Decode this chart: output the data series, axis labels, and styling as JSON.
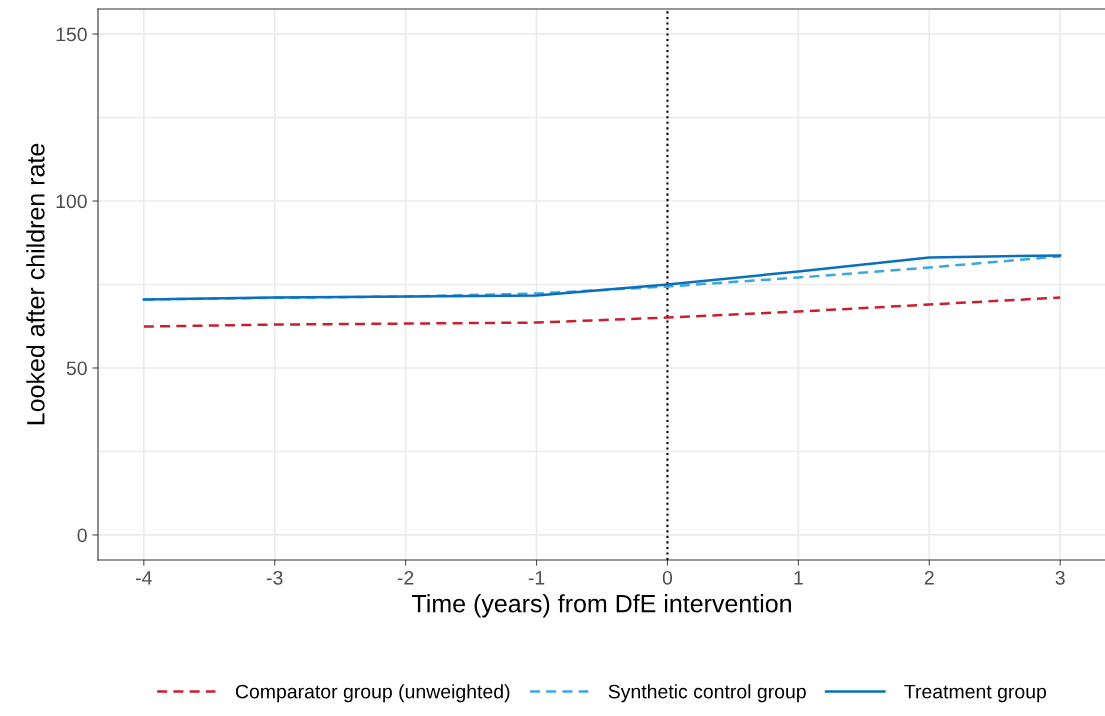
{
  "chart_data": {
    "type": "line",
    "xlabel": "Time (years) from DfE intervention",
    "ylabel": "Looked after children rate",
    "x": [
      -4,
      -3,
      -2,
      -1,
      0,
      1,
      2,
      3
    ],
    "series": [
      {
        "name": "Comparator group (unweighted)",
        "color": "#c8202f",
        "line_style": "dashed",
        "values": [
          62.4,
          63.0,
          63.3,
          63.6,
          65.1,
          66.9,
          69.0,
          71.1
        ]
      },
      {
        "name": "Synthetic control group",
        "color": "#3fa7e0",
        "line_style": "dashed",
        "values": [
          70.5,
          71.0,
          71.4,
          72.3,
          74.4,
          77.1,
          80.1,
          83.4
        ]
      },
      {
        "name": "Treatment group",
        "color": "#0a6fbd",
        "line_style": "solid",
        "values": [
          70.5,
          71.1,
          71.4,
          71.7,
          75.0,
          78.9,
          83.1,
          83.7
        ]
      }
    ],
    "xlim": [
      -4.35,
      3.35
    ],
    "xticks": [
      -4,
      -3,
      -2,
      -1,
      0,
      1,
      2,
      3
    ],
    "ylim": [
      -7.5,
      157.5
    ],
    "yticks": [
      0,
      {
        "value": 25,
        "label": null
      },
      50,
      {
        "value": 75,
        "label": null
      },
      100,
      {
        "value": 125,
        "label": null
      },
      150
    ],
    "ref_lines": [
      {
        "axis": "x",
        "value": 0,
        "label": null,
        "color": "#000000",
        "line_style": "dotted"
      }
    ],
    "grid": true,
    "legend": "bottom",
    "marker": "none"
  }
}
